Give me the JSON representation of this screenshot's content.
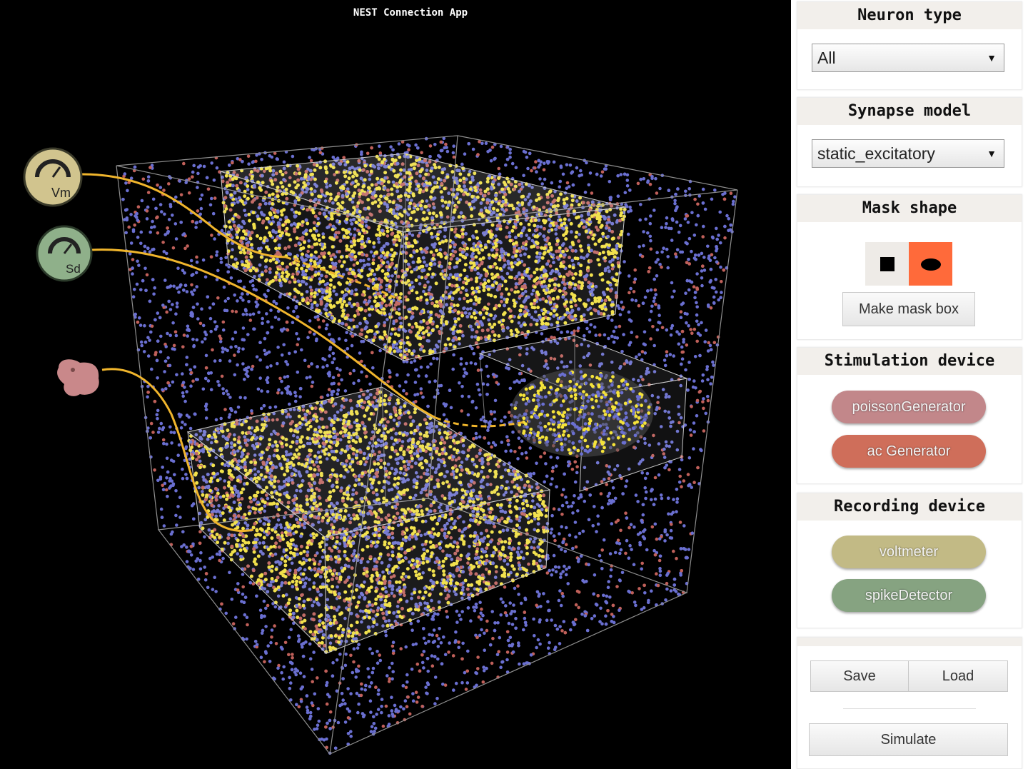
{
  "app": {
    "title": "NEST Connection App"
  },
  "viewport": {
    "colors": {
      "background": "#000000",
      "excitatory": "#6a6fd1",
      "inhibitory": "#c0605a",
      "selected": "#f5e33a",
      "wire": "#f0b52c",
      "frame": "#8f8f8f"
    },
    "devices": [
      {
        "name": "voltmeter-node",
        "label": "Vm",
        "icon": "gauge-icon",
        "color": "#d1c48e"
      },
      {
        "name": "spike-detector-node",
        "label": "Sd",
        "icon": "gauge-icon",
        "color": "#8fb08a"
      },
      {
        "name": "poisson-generator-node",
        "label": "",
        "icon": "generator-blob-icon",
        "color": "#c9888a"
      }
    ]
  },
  "sidebar": {
    "neuron_type": {
      "title": "Neuron type",
      "value": "All"
    },
    "synapse_model": {
      "title": "Synapse model",
      "value": "static_excitatory"
    },
    "mask_shape": {
      "title": "Mask shape",
      "shapes": [
        {
          "icon": "square-icon",
          "selected": false
        },
        {
          "icon": "ellipse-icon",
          "selected": true
        }
      ],
      "make_label": "Make mask box"
    },
    "stimulation": {
      "title": "Stimulation device",
      "items": [
        {
          "label": "poissonGenerator",
          "color": "#c2878a"
        },
        {
          "label": "ac Generator",
          "color": "#cf6e5a"
        }
      ]
    },
    "recording": {
      "title": "Recording device",
      "items": [
        {
          "label": "voltmeter",
          "color": "#c2ba85"
        },
        {
          "label": "spikeDetector",
          "color": "#86a381"
        }
      ]
    },
    "actions": {
      "save": "Save",
      "load": "Load",
      "simulate": "Simulate"
    }
  }
}
